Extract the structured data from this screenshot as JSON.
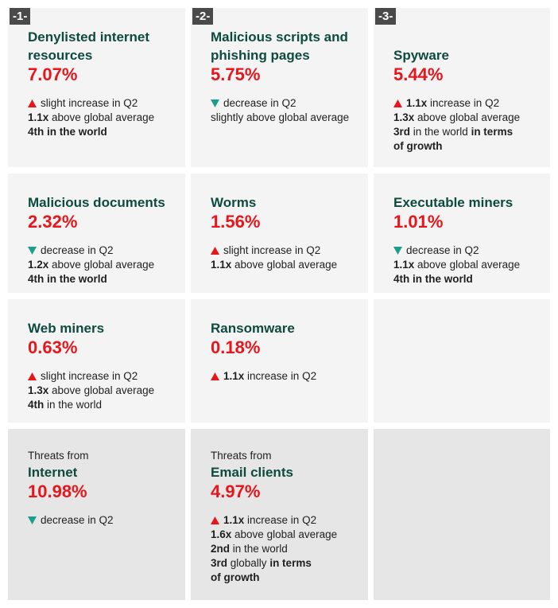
{
  "cards": [
    {
      "badge": "-1-",
      "title": [
        "Denylisted internet",
        "resources"
      ],
      "value": "7.07%",
      "lines": [
        {
          "arrow": "up",
          "parts": [
            {
              "t": "slight increase in Q2"
            }
          ]
        },
        {
          "parts": [
            {
              "t": "1.1x",
              "b": true
            },
            {
              "t": " above global average"
            }
          ]
        },
        {
          "parts": [
            {
              "t": "4th in the world",
              "b": true
            }
          ]
        }
      ]
    },
    {
      "badge": "-2-",
      "title": [
        "Malicious scripts and",
        "phishing pages"
      ],
      "value": "5.75%",
      "lines": [
        {
          "arrow": "down",
          "parts": [
            {
              "t": "decrease in Q2"
            }
          ]
        },
        {
          "parts": [
            {
              "t": "slightly above global average"
            }
          ]
        }
      ]
    },
    {
      "badge": "-3-",
      "title": [
        "Spyware"
      ],
      "value": "5.44%",
      "lines": [
        {
          "arrow": "up",
          "parts": [
            {
              "t": "1.1x",
              "b": true
            },
            {
              "t": " increase in Q2"
            }
          ]
        },
        {
          "parts": [
            {
              "t": "1.3x",
              "b": true
            },
            {
              "t": " above global average"
            }
          ]
        },
        {
          "parts": [
            {
              "t": "3rd",
              "b": true
            },
            {
              "t": " in the world "
            },
            {
              "t": "in terms",
              "b": true
            }
          ]
        },
        {
          "parts": [
            {
              "t": "of growth",
              "b": true
            }
          ]
        }
      ]
    },
    {
      "title": [
        "Malicious documents"
      ],
      "value": "2.32%",
      "lines": [
        {
          "arrow": "down",
          "parts": [
            {
              "t": "decrease in Q2"
            }
          ]
        },
        {
          "parts": [
            {
              "t": "1.2x",
              "b": true
            },
            {
              "t": " above global average"
            }
          ]
        },
        {
          "parts": [
            {
              "t": "4th in the world",
              "b": true
            }
          ]
        }
      ]
    },
    {
      "title": [
        "Worms"
      ],
      "value": "1.56%",
      "lines": [
        {
          "arrow": "up",
          "parts": [
            {
              "t": "slight increase in Q2"
            }
          ]
        },
        {
          "parts": [
            {
              "t": "1.1x",
              "b": true
            },
            {
              "t": " above global average"
            }
          ]
        }
      ]
    },
    {
      "title": [
        "Executable miners"
      ],
      "value": "1.01%",
      "lines": [
        {
          "arrow": "down",
          "parts": [
            {
              "t": "decrease in Q2"
            }
          ]
        },
        {
          "parts": [
            {
              "t": "1.1x",
              "b": true
            },
            {
              "t": " above global average"
            }
          ]
        },
        {
          "parts": [
            {
              "t": "4th in the world",
              "b": true
            }
          ]
        }
      ]
    },
    {
      "title": [
        "Web miners"
      ],
      "value": "0.63%",
      "lines": [
        {
          "arrow": "up",
          "parts": [
            {
              "t": "slight increase in Q2"
            }
          ]
        },
        {
          "parts": [
            {
              "t": "1.3x",
              "b": true
            },
            {
              "t": " above global average"
            }
          ]
        },
        {
          "parts": [
            {
              "t": "4th",
              "b": true
            },
            {
              "t": " in the world"
            }
          ]
        }
      ]
    },
    {
      "title": [
        "Ransomware"
      ],
      "value": "0.18%",
      "lines": [
        {
          "arrow": "up",
          "parts": [
            {
              "t": "1.1x",
              "b": true
            },
            {
              "t": " increase in Q2"
            }
          ]
        }
      ]
    },
    {
      "pre": "Threats from",
      "title": [
        "Internet"
      ],
      "value": "10.98%",
      "lines": [
        {
          "arrow": "down",
          "parts": [
            {
              "t": "decrease in Q2"
            }
          ]
        }
      ]
    },
    {
      "pre": "Threats from",
      "title": [
        "Email clients"
      ],
      "value": "4.97%",
      "lines": [
        {
          "arrow": "up",
          "parts": [
            {
              "t": "1.1x",
              "b": true
            },
            {
              "t": " increase in Q2"
            }
          ]
        },
        {
          "parts": [
            {
              "t": "1.6x",
              "b": true
            },
            {
              "t": " above global average"
            }
          ]
        },
        {
          "parts": [
            {
              "t": "2nd",
              "b": true
            },
            {
              "t": " in the world"
            }
          ]
        },
        {
          "parts": [
            {
              "t": "3rd",
              "b": true
            },
            {
              "t": " globally "
            },
            {
              "t": "in terms",
              "b": true
            }
          ]
        },
        {
          "parts": [
            {
              "t": "of growth",
              "b": true
            }
          ]
        }
      ]
    }
  ]
}
